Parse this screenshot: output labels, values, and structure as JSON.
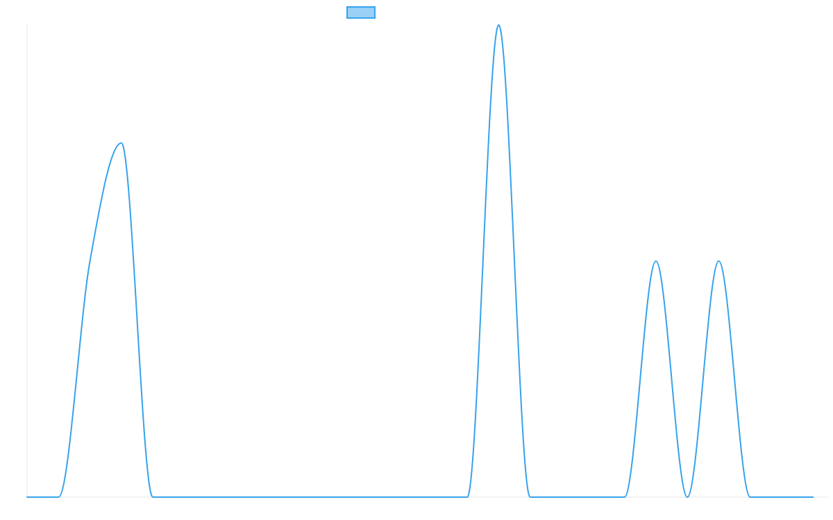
{
  "chart_data": {
    "type": "line",
    "title": "",
    "xlabel": "",
    "ylabel": "",
    "grid": false,
    "legend_position": "top-center",
    "x": [
      0,
      1,
      2,
      3,
      4,
      5,
      6,
      7,
      8,
      9,
      10,
      11,
      12,
      13,
      14,
      15,
      16,
      17,
      18,
      19,
      20,
      21,
      22,
      23,
      24,
      25
    ],
    "xlim": [
      0,
      25.5
    ],
    "ylim": [
      0,
      2
    ],
    "series": [
      {
        "values": [
          0,
          0,
          1,
          1.5,
          0,
          0,
          0,
          0,
          0,
          0,
          0,
          0,
          0,
          0,
          0,
          2,
          0,
          0,
          0,
          0,
          1,
          0,
          1,
          0,
          0,
          0
        ],
        "color": "#36a2eb",
        "fill_color": "#9ad0f5"
      }
    ]
  }
}
